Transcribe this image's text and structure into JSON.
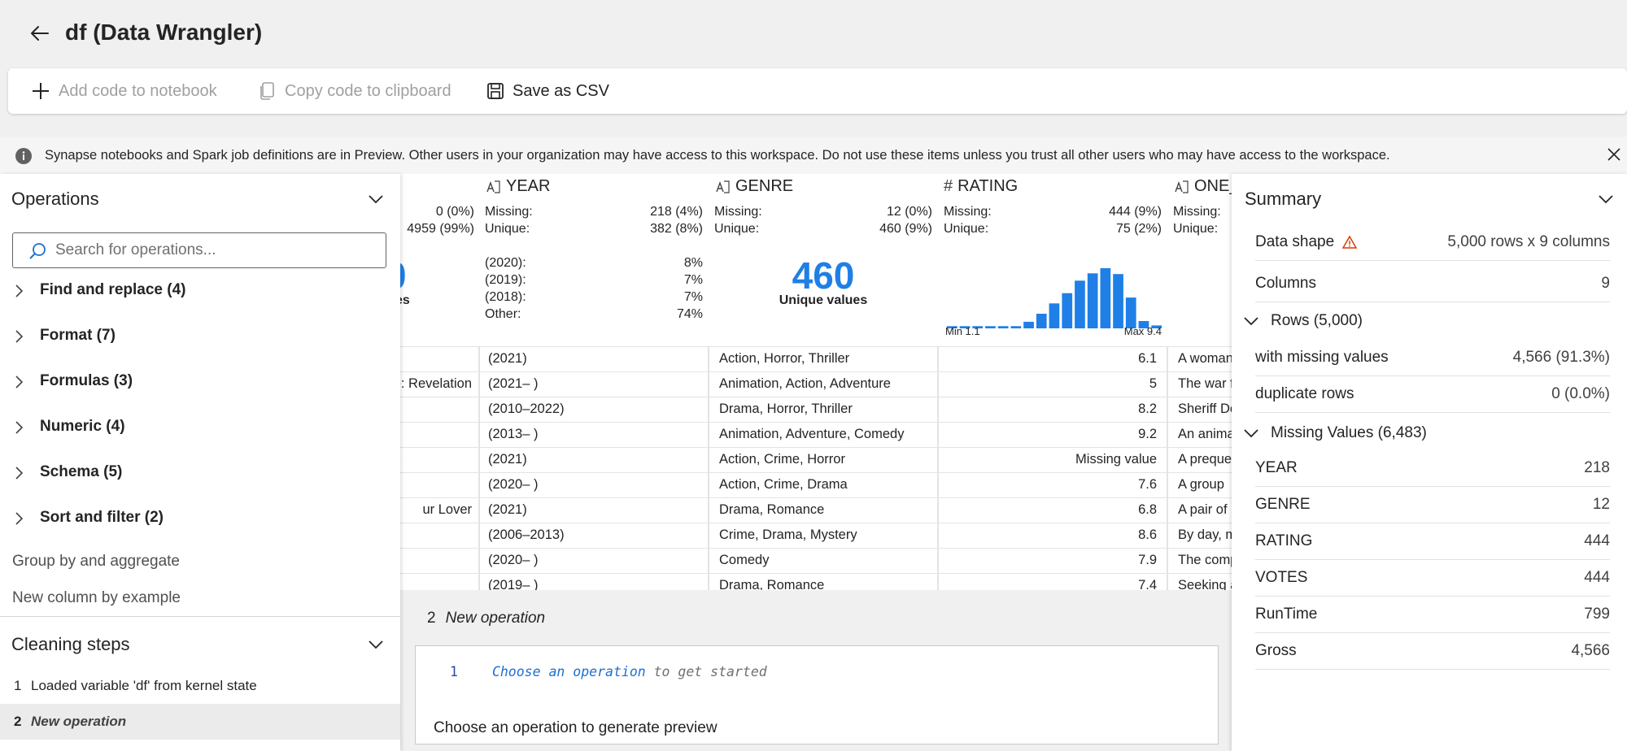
{
  "title": "df (Data Wrangler)",
  "toolbar": {
    "add_code": "Add code to notebook",
    "copy_code": "Copy code to clipboard",
    "save_csv": "Save as CSV"
  },
  "banner": {
    "text": "Synapse notebooks and Spark job definitions are in Preview. Other users in your organization may have access to this workspace. Do not use these items unless you trust all other users who may have access to the workspace."
  },
  "grid": {
    "partial_col": {
      "missing": "0 (0%)",
      "unique": "4959 (99%)",
      "big_num_fragment": "0",
      "cap_fragment": "es"
    },
    "columns": [
      {
        "name": "YEAR",
        "missing_label": "Missing:",
        "missing": "218 (4%)",
        "unique_label": "Unique:",
        "unique": "382 (8%)",
        "top": [
          {
            "label": "(2020):",
            "pct": "8%"
          },
          {
            "label": "(2019):",
            "pct": "7%"
          },
          {
            "label": "(2018):",
            "pct": "7%"
          },
          {
            "label": "Other:",
            "pct": "74%"
          }
        ]
      },
      {
        "name": "GENRE",
        "missing_label": "Missing:",
        "missing": "12 (0%)",
        "unique_label": "Unique:",
        "unique": "460 (9%)",
        "big_value": "460",
        "big_caption": "Unique values"
      },
      {
        "name": "RATING",
        "missing_label": "Missing:",
        "missing": "444 (9%)",
        "unique_label": "Unique:",
        "unique": "75 (2%)",
        "hist_min": "Min 1.1",
        "hist_max": "Max 9.4"
      },
      {
        "name": "ONE_",
        "missing_label": "Missing:",
        "unique_label": "Unique:"
      }
    ],
    "rows": [
      {
        "prev": "",
        "year": "(2021)",
        "genre": "Action, Horror, Thriller",
        "rating": "6.1",
        "one": "A woman"
      },
      {
        "prev": "e: Revelation",
        "year": "(2021– )",
        "genre": "Animation, Action, Adventure",
        "rating": "5",
        "one": "The war f"
      },
      {
        "prev": "",
        "year": "(2010–2022)",
        "genre": "Drama, Horror, Thriller",
        "rating": "8.2",
        "one": "Sheriff De"
      },
      {
        "prev": "",
        "year": "(2013– )",
        "genre": "Animation, Adventure, Comedy",
        "rating": "9.2",
        "one": "An anima"
      },
      {
        "prev": "",
        "year": "(2021)",
        "genre": "Action, Crime, Horror",
        "rating": "Missing value",
        "one": "A preque"
      },
      {
        "prev": "",
        "year": "(2020– )",
        "genre": "Action, Crime, Drama",
        "rating": "7.6",
        "one": "A group"
      },
      {
        "prev": "ur Lover",
        "year": "(2021)",
        "genre": "Drama, Romance",
        "rating": "6.8",
        "one": "A pair of"
      },
      {
        "prev": "",
        "year": "(2006–2013)",
        "genre": "Crime, Drama, Mystery",
        "rating": "8.6",
        "one": "By day, m"
      },
      {
        "prev": "",
        "year": "(2020– )",
        "genre": "Comedy",
        "rating": "7.9",
        "one": "The comp"
      },
      {
        "prev": "",
        "year": "(2019– )",
        "genre": "Drama, Romance",
        "rating": "7.4",
        "one": "Seeking a"
      }
    ]
  },
  "rating_histogram": [
    0.03,
    0.03,
    0.03,
    0.03,
    0.03,
    0.03,
    0.09,
    0.2,
    0.34,
    0.48,
    0.65,
    0.75,
    0.82,
    0.74,
    0.42,
    0.1,
    0.04
  ],
  "operations": {
    "title": "Operations",
    "search_placeholder": "Search for operations...",
    "groups": [
      {
        "label": "Find and replace (4)"
      },
      {
        "label": "Format (7)"
      },
      {
        "label": "Formulas (3)"
      },
      {
        "label": "Numeric (4)"
      },
      {
        "label": "Schema (5)"
      },
      {
        "label": "Sort and filter (2)"
      }
    ],
    "plain": [
      "Group by and aggregate",
      "New column by example"
    ]
  },
  "cleaning": {
    "title": "Cleaning steps",
    "steps": [
      {
        "num": "1",
        "label": "Loaded variable 'df' from kernel state"
      },
      {
        "num": "2",
        "label": "New operation"
      }
    ]
  },
  "summary": {
    "title": "Summary",
    "data_shape_label": "Data shape",
    "data_shape_value": "5,000 rows x 9 columns",
    "columns_label": "Columns",
    "columns_value": "9",
    "rows_section": "Rows (5,000)",
    "missing_rows_label": "with missing values",
    "missing_rows_value": "4,566 (91.3%)",
    "dup_rows_label": "duplicate rows",
    "dup_rows_value": "0 (0.0%)",
    "missing_section": "Missing Values (6,483)",
    "missing": [
      {
        "col": "YEAR",
        "count": "218"
      },
      {
        "col": "GENRE",
        "count": "12"
      },
      {
        "col": "RATING",
        "count": "444"
      },
      {
        "col": "VOTES",
        "count": "444"
      },
      {
        "col": "RunTime",
        "count": "799"
      },
      {
        "col": "Gross",
        "count": "4,566"
      }
    ]
  },
  "editor": {
    "op_number": "2",
    "op_title": "New operation",
    "line_number": "1",
    "code_keyword": "Choose an operation",
    "code_rest": "to get started",
    "hint": "Choose an operation to generate preview"
  },
  "colors": {
    "accent": "#1f7fe6",
    "warning": "#d83b01"
  }
}
